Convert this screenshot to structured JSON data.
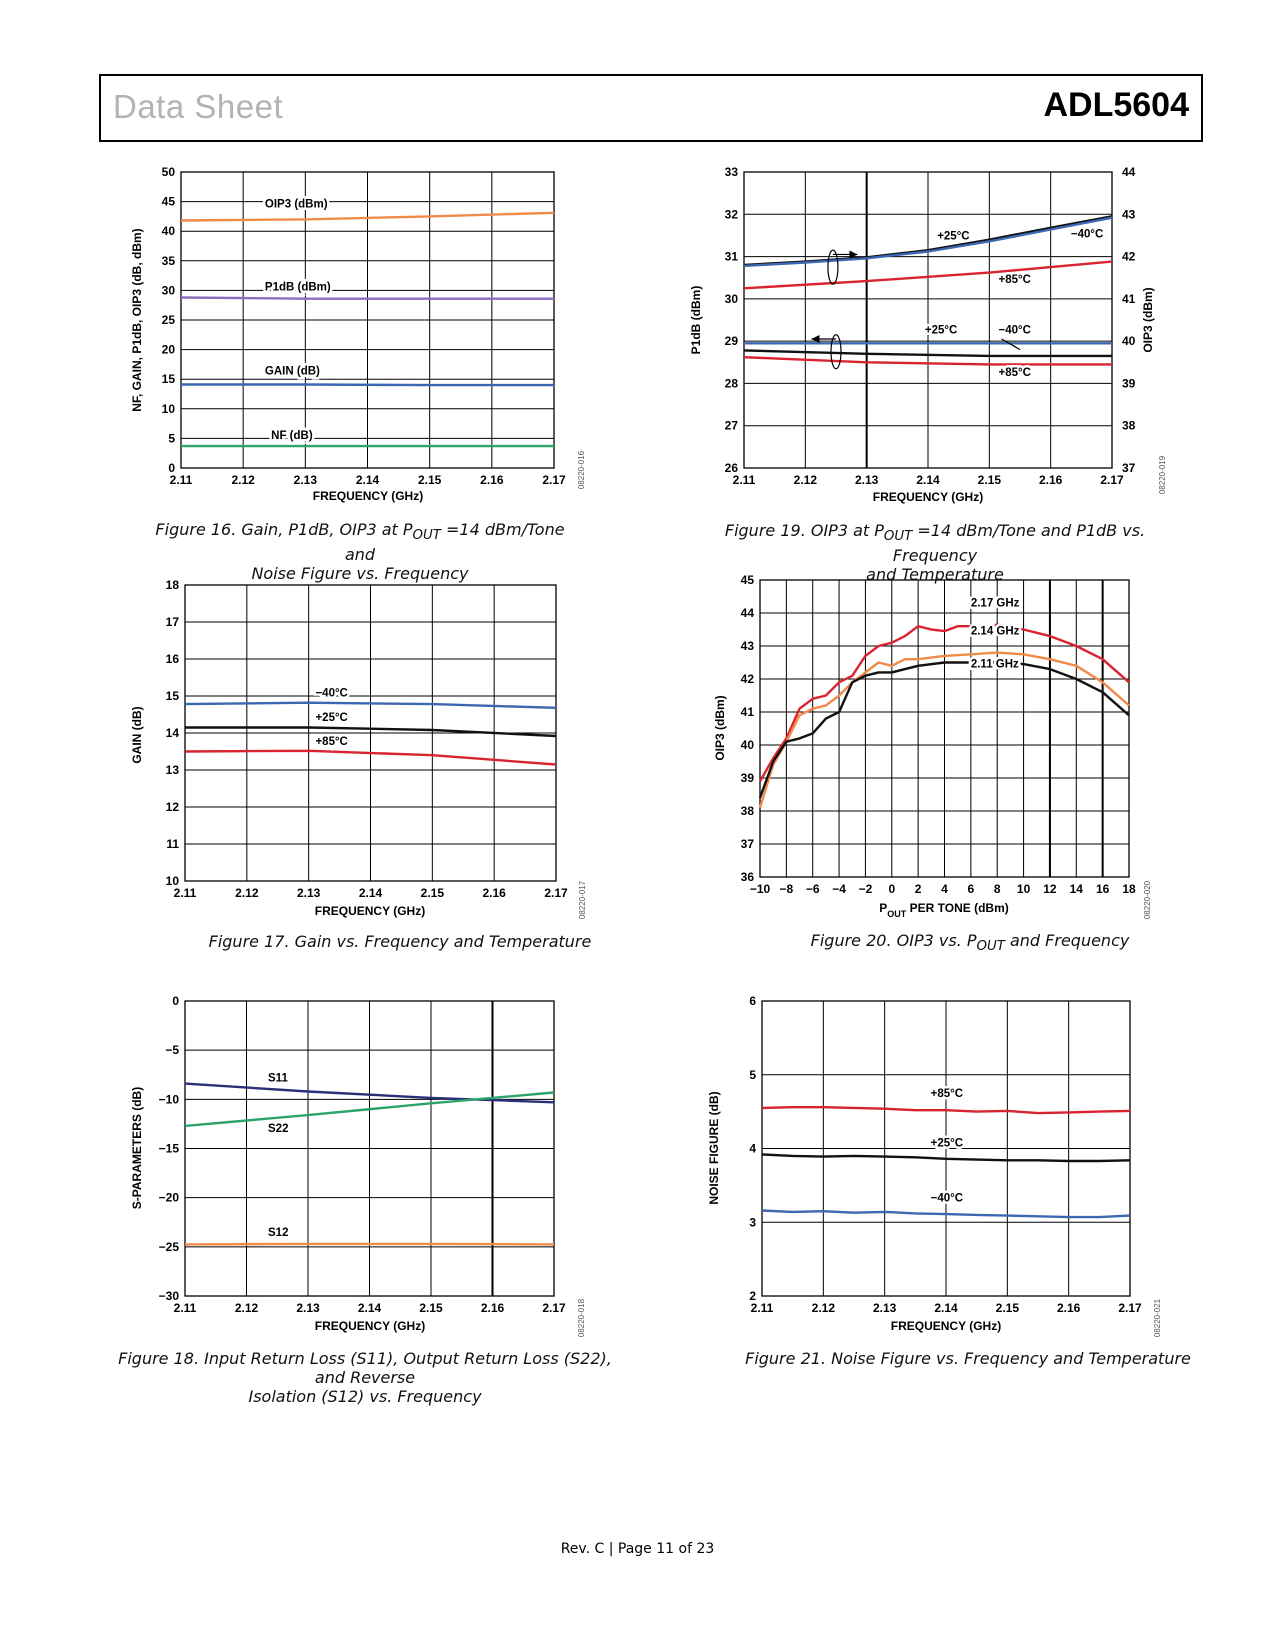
{
  "header": {
    "left": "Data Sheet",
    "right": "ADL5604"
  },
  "footer": "Rev. C | Page 11 of 23",
  "chart_data": [
    {
      "id": "fig16",
      "type": "line",
      "caption_html": "Figure 16. Gain, P1dB, OIP3 at P<sub>OUT</sub> =14 dBm/Tone and<br>Noise Figure vs. Frequency",
      "xlabel": "FREQUENCY (GHz)",
      "ylabel": "NF, GAIN, P1dB, OIP3 (dB, dBm)",
      "code": "08220-016",
      "xlim": [
        2.11,
        2.17
      ],
      "ylim": [
        0,
        50
      ],
      "xticks": [
        2.11,
        2.12,
        2.13,
        2.14,
        2.15,
        2.16,
        2.17
      ],
      "yticks": [
        0,
        5,
        10,
        15,
        20,
        25,
        30,
        35,
        40,
        45,
        50
      ],
      "series": [
        {
          "name": "OIP3 (dBm)",
          "color": "#f08a4b",
          "x": [
            2.11,
            2.13,
            2.15,
            2.17
          ],
          "y": [
            41.8,
            42.0,
            42.5,
            43.1
          ]
        },
        {
          "name": "P1dB (dBm)",
          "color": "#8e6bbf",
          "x": [
            2.11,
            2.13,
            2.15,
            2.17
          ],
          "y": [
            28.8,
            28.6,
            28.6,
            28.6
          ]
        },
        {
          "name": "GAIN (dB)",
          "color": "#3b68b0",
          "x": [
            2.11,
            2.13,
            2.15,
            2.17
          ],
          "y": [
            14.1,
            14.1,
            14.0,
            14.0
          ]
        },
        {
          "name": "NF (dB)",
          "color": "#2ba36b",
          "x": [
            2.11,
            2.13,
            2.15,
            2.17
          ],
          "y": [
            3.7,
            3.7,
            3.7,
            3.7
          ]
        }
      ],
      "annotations": [
        {
          "text": "OIP3 (dBm)",
          "x": 2.1235,
          "y": 44.0
        },
        {
          "text": "P1dB (dBm)",
          "x": 2.1235,
          "y": 30.0
        },
        {
          "text": "GAIN (dB)",
          "x": 2.1235,
          "y": 15.8
        },
        {
          "text": "NF (dB)",
          "x": 2.1245,
          "y": 4.9
        }
      ]
    },
    {
      "id": "fig19",
      "type": "line",
      "caption_html": "Figure 19. OIP3 at P<sub>OUT</sub> =14 dBm/Tone and P1dB vs. Frequency<br>and Temperature",
      "xlabel": "FREQUENCY (GHz)",
      "ylabel": "P1dB (dBm)",
      "y2label": "OIP3 (dBm)",
      "code": "08220-019",
      "xlim": [
        2.11,
        2.17
      ],
      "ylim": [
        26,
        33
      ],
      "y2lim": [
        37,
        44
      ],
      "xticks": [
        2.11,
        2.12,
        2.13,
        2.14,
        2.15,
        2.16,
        2.17
      ],
      "yticks": [
        26,
        27,
        28,
        29,
        30,
        31,
        32,
        33
      ],
      "y2ticks": [
        37,
        38,
        39,
        40,
        41,
        42,
        43,
        44
      ],
      "series": [
        {
          "name": "+25°C",
          "color": "#111111",
          "width": 2.5,
          "x": [
            2.11,
            2.12,
            2.13,
            2.14,
            2.15,
            2.16,
            2.17
          ],
          "y": [
            30.8,
            30.88,
            30.98,
            31.15,
            31.4,
            31.68,
            31.95
          ]
        },
        {
          "name": "-40°C",
          "color": "#3b68b0",
          "x": [
            2.11,
            2.12,
            2.13,
            2.14,
            2.15,
            2.16,
            2.17
          ],
          "y": [
            30.78,
            30.86,
            30.96,
            31.12,
            31.36,
            31.64,
            31.92
          ]
        },
        {
          "name": "+85°C",
          "color": "#d9232e",
          "x": [
            2.11,
            2.13,
            2.15,
            2.17
          ],
          "y": [
            30.25,
            30.42,
            30.62,
            30.88
          ]
        },
        {
          "name": "-40°C",
          "color": "#3b68b0",
          "x": [
            2.11,
            2.17
          ],
          "y": [
            28.95,
            28.95
          ]
        },
        {
          "name": "+25°C",
          "color": "#111111",
          "x": [
            2.11,
            2.13,
            2.15,
            2.17
          ],
          "y": [
            28.78,
            28.7,
            28.65,
            28.65
          ]
        },
        {
          "name": "+85°C",
          "color": "#d9232e",
          "x": [
            2.11,
            2.13,
            2.15,
            2.17
          ],
          "y": [
            28.62,
            28.5,
            28.45,
            28.45
          ]
        }
      ],
      "annotations": [
        {
          "text": "+25°C",
          "x": 2.1415,
          "y": 31.4
        },
        {
          "text": "−40°C",
          "x": 2.1633,
          "y": 31.45
        },
        {
          "text": "+85°C",
          "x": 2.1515,
          "y": 30.38
        },
        {
          "text": "+25°C",
          "x": 2.1395,
          "y": 29.18
        },
        {
          "text": "−40°C",
          "x": 2.1515,
          "y": 29.18
        },
        {
          "text": "+85°C",
          "x": 2.1515,
          "y": 28.18
        }
      ]
    },
    {
      "id": "fig17",
      "type": "line",
      "caption_html": "Figure 17. Gain vs. Frequency and Temperature",
      "xlabel": "FREQUENCY (GHz)",
      "ylabel": "GAIN (dB)",
      "code": "08220-017",
      "xlim": [
        2.11,
        2.17
      ],
      "ylim": [
        10,
        18
      ],
      "xticks": [
        2.11,
        2.12,
        2.13,
        2.14,
        2.15,
        2.16,
        2.17
      ],
      "yticks": [
        10,
        11,
        12,
        13,
        14,
        15,
        16,
        17,
        18
      ],
      "series": [
        {
          "name": "−40°C",
          "color": "#3b68b0",
          "x": [
            2.11,
            2.13,
            2.15,
            2.17
          ],
          "y": [
            14.78,
            14.82,
            14.78,
            14.68
          ]
        },
        {
          "name": "+25°C",
          "color": "#111111",
          "x": [
            2.11,
            2.13,
            2.15,
            2.17
          ],
          "y": [
            14.15,
            14.15,
            14.08,
            13.92
          ]
        },
        {
          "name": "+85°C",
          "color": "#d9232e",
          "x": [
            2.11,
            2.13,
            2.15,
            2.17
          ],
          "y": [
            13.5,
            13.52,
            13.4,
            13.15
          ]
        }
      ],
      "annotations": [
        {
          "text": "−40°C",
          "x": 2.1311,
          "y": 14.98
        },
        {
          "text": "+25°C",
          "x": 2.1311,
          "y": 14.33
        },
        {
          "text": "+85°C",
          "x": 2.1311,
          "y": 13.68
        }
      ]
    },
    {
      "id": "fig20",
      "type": "line",
      "caption_html": "Figure 20. OIP3 vs. P<sub>OUT</sub> and Frequency",
      "xlabel_html": "P<tspan baseline-shift=\"sub\" font-size=\"9\">OUT</tspan> PER TONE (dBm)",
      "ylabel": "OIP3 (dBm)",
      "code": "08220-020",
      "xlim": [
        -10,
        18
      ],
      "ylim": [
        36,
        45
      ],
      "xticks": [
        -10,
        -8,
        -6,
        -4,
        -2,
        0,
        2,
        4,
        6,
        8,
        10,
        12,
        14,
        16,
        18
      ],
      "xticklabels": [
        "−10",
        "−8",
        "−6",
        "−4",
        "−2",
        "0",
        "2",
        "4",
        "6",
        "8",
        "10",
        "12",
        "14",
        "16",
        "18"
      ],
      "yticks": [
        36,
        37,
        38,
        39,
        40,
        41,
        42,
        43,
        44,
        45
      ],
      "series": [
        {
          "name": "2.17 GHz",
          "color": "#d9232e",
          "x": [
            -10,
            -9,
            -8,
            -7,
            -6,
            -5,
            -4,
            -3,
            -2,
            -1,
            0,
            1,
            2,
            3,
            4,
            5,
            6,
            7,
            8,
            10,
            12,
            14,
            16,
            18
          ],
          "y": [
            38.9,
            39.6,
            40.2,
            41.1,
            41.4,
            41.5,
            41.9,
            42.1,
            42.7,
            43.0,
            43.1,
            43.3,
            43.6,
            43.5,
            43.45,
            43.6,
            43.6,
            43.55,
            43.65,
            43.5,
            43.3,
            43.0,
            42.6,
            41.9
          ]
        },
        {
          "name": "2.14 GHz",
          "color": "#f08a4b",
          "x": [
            -10,
            -9,
            -8,
            -7,
            -6,
            -5,
            -4,
            -3,
            -2,
            -1,
            0,
            1,
            2,
            4,
            6,
            8,
            10,
            12,
            14,
            16,
            18
          ],
          "y": [
            38.1,
            39.4,
            40.1,
            40.9,
            41.1,
            41.2,
            41.5,
            41.9,
            42.2,
            42.5,
            42.4,
            42.6,
            42.6,
            42.7,
            42.75,
            42.8,
            42.75,
            42.6,
            42.4,
            41.9,
            41.2
          ]
        },
        {
          "name": "2.11 GHz",
          "color": "#111111",
          "x": [
            -10,
            -9,
            -8,
            -7,
            -6,
            -5,
            -4,
            -3,
            -2,
            -1,
            0,
            1,
            2,
            4,
            6,
            8,
            10,
            12,
            14,
            16,
            18
          ],
          "y": [
            38.4,
            39.5,
            40.1,
            40.2,
            40.35,
            40.8,
            41.0,
            41.9,
            42.1,
            42.2,
            42.2,
            42.3,
            42.4,
            42.5,
            42.5,
            42.5,
            42.45,
            42.3,
            42.0,
            41.6,
            40.9
          ]
        }
      ],
      "annotations": [
        {
          "text": "2.17 GHz",
          "x": 6,
          "y": 44.2
        },
        {
          "text": "2.14 GHz",
          "x": 6,
          "y": 43.35
        },
        {
          "text": "2.11 GHz",
          "x": 6,
          "y": 42.35
        }
      ]
    },
    {
      "id": "fig18",
      "type": "line",
      "caption_html": "Figure 18. Input Return Loss (S11), Output Return Loss (S22), and Reverse<br>Isolation (S12) vs. Frequency",
      "xlabel": "FREQUENCY (GHz)",
      "ylabel": "S-PARAMETERS (dB)",
      "code": "08220-018",
      "xlim": [
        2.11,
        2.17
      ],
      "ylim": [
        -30,
        0
      ],
      "xticks": [
        2.11,
        2.12,
        2.13,
        2.14,
        2.15,
        2.16,
        2.17
      ],
      "yticks": [
        -30,
        -25,
        -20,
        -15,
        -10,
        -5,
        0
      ],
      "yticklabels": [
        "−30",
        "−25",
        "−20",
        "−15",
        "−10",
        "−5",
        "0"
      ],
      "series": [
        {
          "name": "S11",
          "color": "#2b2f7a",
          "x": [
            2.11,
            2.13,
            2.15,
            2.17
          ],
          "y": [
            -8.4,
            -9.2,
            -9.85,
            -10.3
          ]
        },
        {
          "name": "S22",
          "color": "#2ba36b",
          "x": [
            2.11,
            2.13,
            2.15,
            2.17
          ],
          "y": [
            -12.7,
            -11.6,
            -10.4,
            -9.3
          ]
        },
        {
          "name": "S12",
          "color": "#f08a4b",
          "x": [
            2.11,
            2.13,
            2.15,
            2.17
          ],
          "y": [
            -24.75,
            -24.7,
            -24.7,
            -24.75
          ]
        }
      ],
      "annotations": [
        {
          "text": "S11",
          "x": 2.1235,
          "y": -8.2
        },
        {
          "text": "S22",
          "x": 2.1235,
          "y": -13.3
        },
        {
          "text": "S12",
          "x": 2.1235,
          "y": -23.9
        }
      ]
    },
    {
      "id": "fig21",
      "type": "line",
      "caption_html": "Figure 21. Noise Figure vs. Frequency and Temperature",
      "xlabel": "FREQUENCY (GHz)",
      "ylabel": "NOISE FIGURE (dB)",
      "code": "08220-021",
      "xlim": [
        2.11,
        2.17
      ],
      "ylim": [
        2,
        6
      ],
      "xticks": [
        2.11,
        2.12,
        2.13,
        2.14,
        2.15,
        2.16,
        2.17
      ],
      "yticks": [
        2,
        3,
        4,
        5,
        6
      ],
      "series": [
        {
          "name": "+85°C",
          "color": "#d9232e",
          "x": [
            2.11,
            2.115,
            2.12,
            2.125,
            2.13,
            2.135,
            2.14,
            2.145,
            2.15,
            2.155,
            2.16,
            2.165,
            2.17
          ],
          "y": [
            4.55,
            4.56,
            4.56,
            4.55,
            4.54,
            4.52,
            4.52,
            4.5,
            4.51,
            4.48,
            4.49,
            4.5,
            4.51
          ]
        },
        {
          "name": "+25°C",
          "color": "#111111",
          "x": [
            2.11,
            2.115,
            2.12,
            2.125,
            2.13,
            2.135,
            2.14,
            2.145,
            2.15,
            2.155,
            2.16,
            2.165,
            2.17
          ],
          "y": [
            3.92,
            3.9,
            3.89,
            3.9,
            3.89,
            3.88,
            3.86,
            3.85,
            3.84,
            3.84,
            3.83,
            3.83,
            3.84
          ]
        },
        {
          "name": "−40°C",
          "color": "#3b68b0",
          "x": [
            2.11,
            2.115,
            2.12,
            2.125,
            2.13,
            2.135,
            2.14,
            2.145,
            2.15,
            2.155,
            2.16,
            2.165,
            2.17
          ],
          "y": [
            3.16,
            3.14,
            3.15,
            3.13,
            3.14,
            3.12,
            3.11,
            3.1,
            3.09,
            3.08,
            3.07,
            3.07,
            3.09
          ]
        }
      ],
      "annotations": [
        {
          "text": "+85°C",
          "x": 2.1375,
          "y": 4.7
        },
        {
          "text": "+25°C",
          "x": 2.1375,
          "y": 4.03
        },
        {
          "text": "−40°C",
          "x": 2.1375,
          "y": 3.28
        }
      ]
    }
  ]
}
